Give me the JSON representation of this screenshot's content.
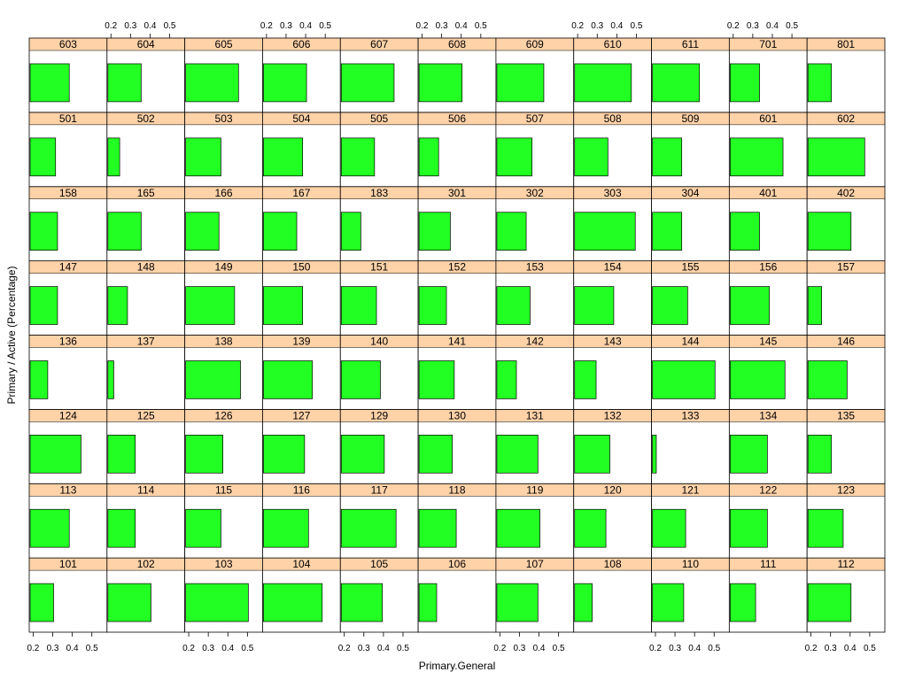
{
  "chart_data": {
    "type": "bar",
    "orientation": "horizontal",
    "layout": {
      "columns": 11,
      "rows": 8,
      "order": "bottom-left to top-right, row by row"
    },
    "xlabel": "Primary.General",
    "ylabel": "Primary / Active (Percentage)",
    "xlim": [
      0.18,
      0.52
    ],
    "x_ticks": [
      0.2,
      0.3,
      0.4,
      0.5
    ],
    "x_tick_labels": [
      "0.2",
      "0.3",
      "0.4",
      "0.5"
    ],
    "panels": [
      {
        "label": "101",
        "value": 0.3
      },
      {
        "label": "102",
        "value": 0.4
      },
      {
        "label": "103",
        "value": 0.5
      },
      {
        "label": "104",
        "value": 0.48
      },
      {
        "label": "105",
        "value": 0.39
      },
      {
        "label": "106",
        "value": 0.27
      },
      {
        "label": "107",
        "value": 0.39
      },
      {
        "label": "108",
        "value": 0.27
      },
      {
        "label": "110",
        "value": 0.34
      },
      {
        "label": "111",
        "value": 0.31
      },
      {
        "label": "112",
        "value": 0.4
      },
      {
        "label": "113",
        "value": 0.38
      },
      {
        "label": "114",
        "value": 0.32
      },
      {
        "label": "115",
        "value": 0.36
      },
      {
        "label": "116",
        "value": 0.41
      },
      {
        "label": "117",
        "value": 0.46
      },
      {
        "label": "118",
        "value": 0.37
      },
      {
        "label": "119",
        "value": 0.4
      },
      {
        "label": "120",
        "value": 0.34
      },
      {
        "label": "121",
        "value": 0.35
      },
      {
        "label": "122",
        "value": 0.37
      },
      {
        "label": "123",
        "value": 0.36
      },
      {
        "label": "124",
        "value": 0.44
      },
      {
        "label": "125",
        "value": 0.32
      },
      {
        "label": "126",
        "value": 0.37
      },
      {
        "label": "127",
        "value": 0.39
      },
      {
        "label": "129",
        "value": 0.4
      },
      {
        "label": "130",
        "value": 0.35
      },
      {
        "label": "131",
        "value": 0.39
      },
      {
        "label": "132",
        "value": 0.36
      },
      {
        "label": "133",
        "value": 0.2
      },
      {
        "label": "134",
        "value": 0.37
      },
      {
        "label": "135",
        "value": 0.3
      },
      {
        "label": "136",
        "value": 0.27
      },
      {
        "label": "137",
        "value": 0.21
      },
      {
        "label": "138",
        "value": 0.46
      },
      {
        "label": "139",
        "value": 0.43
      },
      {
        "label": "140",
        "value": 0.38
      },
      {
        "label": "141",
        "value": 0.36
      },
      {
        "label": "142",
        "value": 0.28
      },
      {
        "label": "143",
        "value": 0.29
      },
      {
        "label": "144",
        "value": 0.5
      },
      {
        "label": "145",
        "value": 0.46
      },
      {
        "label": "146",
        "value": 0.38
      },
      {
        "label": "147",
        "value": 0.32
      },
      {
        "label": "148",
        "value": 0.28
      },
      {
        "label": "149",
        "value": 0.43
      },
      {
        "label": "150",
        "value": 0.38
      },
      {
        "label": "151",
        "value": 0.36
      },
      {
        "label": "152",
        "value": 0.32
      },
      {
        "label": "153",
        "value": 0.35
      },
      {
        "label": "154",
        "value": 0.38
      },
      {
        "label": "155",
        "value": 0.36
      },
      {
        "label": "156",
        "value": 0.38
      },
      {
        "label": "157",
        "value": 0.25
      },
      {
        "label": "158",
        "value": 0.32
      },
      {
        "label": "165",
        "value": 0.35
      },
      {
        "label": "166",
        "value": 0.35
      },
      {
        "label": "167",
        "value": 0.35
      },
      {
        "label": "183",
        "value": 0.28
      },
      {
        "label": "301",
        "value": 0.34
      },
      {
        "label": "302",
        "value": 0.33
      },
      {
        "label": "303",
        "value": 0.49
      },
      {
        "label": "304",
        "value": 0.33
      },
      {
        "label": "401",
        "value": 0.33
      },
      {
        "label": "402",
        "value": 0.4
      },
      {
        "label": "501",
        "value": 0.31
      },
      {
        "label": "502",
        "value": 0.24
      },
      {
        "label": "503",
        "value": 0.36
      },
      {
        "label": "504",
        "value": 0.38
      },
      {
        "label": "505",
        "value": 0.35
      },
      {
        "label": "506",
        "value": 0.28
      },
      {
        "label": "507",
        "value": 0.36
      },
      {
        "label": "508",
        "value": 0.35
      },
      {
        "label": "509",
        "value": 0.33
      },
      {
        "label": "601",
        "value": 0.45
      },
      {
        "label": "602",
        "value": 0.47
      },
      {
        "label": "603",
        "value": 0.38
      },
      {
        "label": "604",
        "value": 0.35
      },
      {
        "label": "605",
        "value": 0.45
      },
      {
        "label": "606",
        "value": 0.4
      },
      {
        "label": "607",
        "value": 0.45
      },
      {
        "label": "608",
        "value": 0.4
      },
      {
        "label": "609",
        "value": 0.42
      },
      {
        "label": "610",
        "value": 0.47
      },
      {
        "label": "611",
        "value": 0.42
      },
      {
        "label": "701",
        "value": 0.33
      },
      {
        "label": "801",
        "value": 0.3
      }
    ]
  },
  "colors": {
    "bar_fill": "#22ff22",
    "strip": "#ffd2a8",
    "panel_border": "#000000",
    "panel_bg": "#ffffff"
  }
}
